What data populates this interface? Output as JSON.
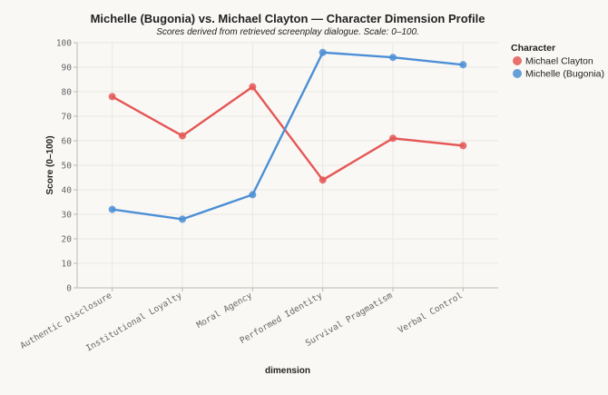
{
  "chart_data": {
    "type": "line",
    "title": "Michelle (Bugonia) vs. Michael Clayton — Character Dimension Profile",
    "subtitle": "Scores derived from retrieved screenplay dialogue. Scale: 0–100.",
    "xlabel": "dimension",
    "ylabel": "Score (0–100)",
    "ylim": [
      0,
      100
    ],
    "yticks": [
      0,
      10,
      20,
      30,
      40,
      50,
      60,
      70,
      80,
      90,
      100
    ],
    "grid": true,
    "legend_title": "Character",
    "legend_position": "top-right",
    "categories": [
      "Authentic Disclosure",
      "Institutional Loyalty",
      "Moral Agency",
      "Performed Identity",
      "Survival Pragmatism",
      "Verbal Control"
    ],
    "series": [
      {
        "name": "Michael Clayton",
        "color": "#e45756",
        "values": [
          78,
          62,
          82,
          44,
          61,
          58
        ]
      },
      {
        "name": "Michelle (Bugonia)",
        "color": "#4c8fd6",
        "values": [
          32,
          28,
          38,
          96,
          94,
          91
        ]
      }
    ]
  }
}
